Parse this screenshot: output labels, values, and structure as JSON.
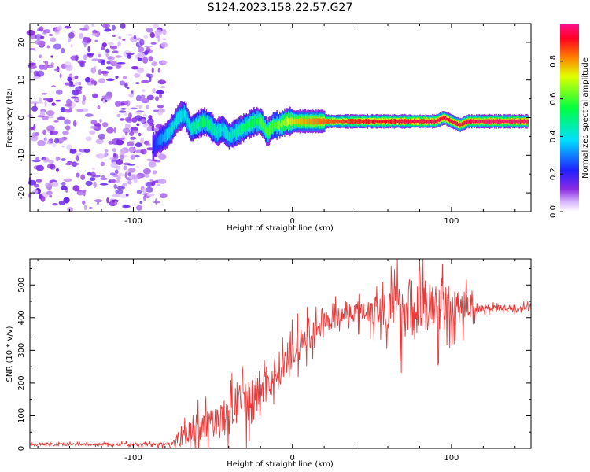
{
  "title": "S124.2023.158.22.57.G27",
  "colors": {
    "snr_line": "#e83a3a",
    "noise": "#a060f0"
  },
  "chart_data": [
    {
      "type": "heatmap",
      "xlabel": "Height of straight line (km)",
      "ylabel": "Frequency (Hz)",
      "xlim": [
        -165,
        150
      ],
      "ylim": [
        -25,
        25
      ],
      "x_ticks": [
        -100,
        0,
        100
      ],
      "y_ticks": [
        -20,
        -10,
        0,
        10,
        20
      ],
      "colorbar": {
        "label": "Normalized spectral amplitude",
        "range": [
          0,
          1
        ],
        "ticks": [
          "0.0",
          "0.2",
          "0.4",
          "0.6",
          "0.8"
        ],
        "colormap": "rainbow (white-violet-blue-cyan-green-yellow-red-magenta)"
      },
      "noise_region_x": [
        -165,
        -80
      ],
      "ridge": {
        "x": [
          -88,
          -84,
          -80,
          -76,
          -72,
          -68,
          -64,
          -60,
          -56,
          -52,
          -48,
          -44,
          -40,
          -36,
          -32,
          -28,
          -24,
          -20,
          -16,
          -12,
          -8,
          -4,
          0,
          10,
          20,
          30,
          40,
          50,
          60,
          70,
          80,
          90,
          95,
          100,
          105,
          110,
          120,
          130,
          140,
          148
        ],
        "freq": [
          -8,
          -6,
          -5,
          -3,
          0,
          1,
          -3,
          -2,
          -1,
          -2,
          -4,
          -3,
          -5,
          -4,
          -3,
          -2,
          -1,
          -1,
          -4,
          -2,
          -2,
          -1,
          -1,
          -1,
          -1,
          -1,
          -1,
          -1,
          -1,
          -1,
          -1,
          -1,
          0,
          -1,
          -2,
          -1,
          -1,
          -1,
          -1,
          -1
        ],
        "amp": [
          0.2,
          0.3,
          0.35,
          0.45,
          0.4,
          0.4,
          0.45,
          0.5,
          0.55,
          0.5,
          0.45,
          0.4,
          0.45,
          0.45,
          0.5,
          0.55,
          0.55,
          0.6,
          0.6,
          0.6,
          0.65,
          0.7,
          0.75,
          0.8,
          0.85,
          0.88,
          0.9,
          0.92,
          0.92,
          0.94,
          0.95,
          0.95,
          0.93,
          0.95,
          0.95,
          0.96,
          0.97,
          0.97,
          0.97,
          0.97
        ]
      }
    },
    {
      "type": "line",
      "xlabel": "Height of straight line (km)",
      "ylabel": "SNR (10 * v/v)",
      "xlim": [
        -165,
        150
      ],
      "ylim": [
        0,
        580
      ],
      "x_ticks": [
        -100,
        0,
        100
      ],
      "y_ticks": [
        0,
        100,
        200,
        300,
        400,
        500
      ],
      "series": [
        {
          "envelope_x": [
            -165,
            -80,
            -70,
            -60,
            -50,
            -40,
            -30,
            -20,
            -10,
            0,
            10,
            20,
            30,
            40,
            50,
            60,
            70,
            80,
            90,
            100,
            110,
            120,
            130,
            140,
            150
          ],
          "envelope_snr": [
            12,
            12,
            30,
            60,
            80,
            110,
            140,
            180,
            230,
            290,
            340,
            380,
            405,
            420,
            425,
            430,
            430,
            430,
            430,
            430,
            430,
            430,
            430,
            430,
            430
          ],
          "spread": [
            6,
            8,
            40,
            70,
            80,
            90,
            110,
            110,
            100,
            80,
            70,
            50,
            50,
            50,
            80,
            110,
            150,
            170,
            130,
            110,
            60,
            20,
            15,
            15,
            15
          ]
        }
      ]
    }
  ]
}
